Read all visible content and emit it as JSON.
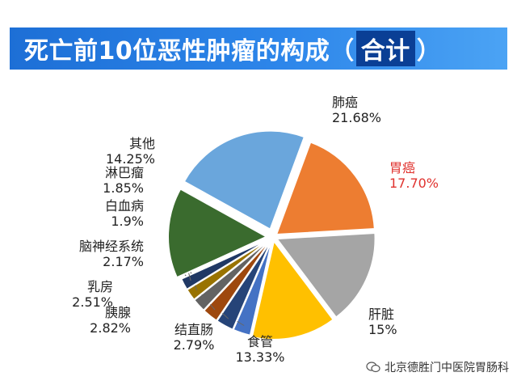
{
  "header": {
    "title_prefix": "死亡前10位恶性肿瘤的构成（",
    "title_highlight": "合计",
    "title_suffix": "）"
  },
  "chart_data": {
    "type": "pie",
    "title": "死亡前10位恶性肿瘤的构成（合计）",
    "slices": [
      {
        "label": "肺癌",
        "value_text": "21.68%",
        "value": 21.68,
        "color": "#6aa6dc"
      },
      {
        "label": "胃癌",
        "value_text": "17.70%",
        "value": 17.7,
        "color": "#ed7d31",
        "highlight": true
      },
      {
        "label": "肝脏",
        "value_text": "15%",
        "value": 15.0,
        "color": "#a5a5a5"
      },
      {
        "label": "食管",
        "value_text": "13.33%",
        "value": 13.33,
        "color": "#ffc000"
      },
      {
        "label": "结直肠",
        "value_text": "2.79%",
        "value": 2.79,
        "color": "#4472c4"
      },
      {
        "label": "胰腺",
        "value_text": "2.82%",
        "value": 2.82,
        "color": "#264478"
      },
      {
        "label": "乳房",
        "value_text": "2.51%",
        "value": 2.51,
        "color": "#9e480e"
      },
      {
        "label": "脑神经系统",
        "value_text": "2.17%",
        "value": 2.17,
        "color": "#636363"
      },
      {
        "label": "白血病",
        "value_text": "1.9%",
        "value": 1.9,
        "color": "#997300"
      },
      {
        "label": "淋巴瘤",
        "value_text": "1.85%",
        "value": 1.85,
        "color": "#203864"
      },
      {
        "label": "其他",
        "value_text": "14.25%",
        "value": 14.25,
        "color": "#3a6b2e"
      }
    ]
  },
  "watermark": {
    "text": "北京德胜门中医院胃肠科"
  }
}
